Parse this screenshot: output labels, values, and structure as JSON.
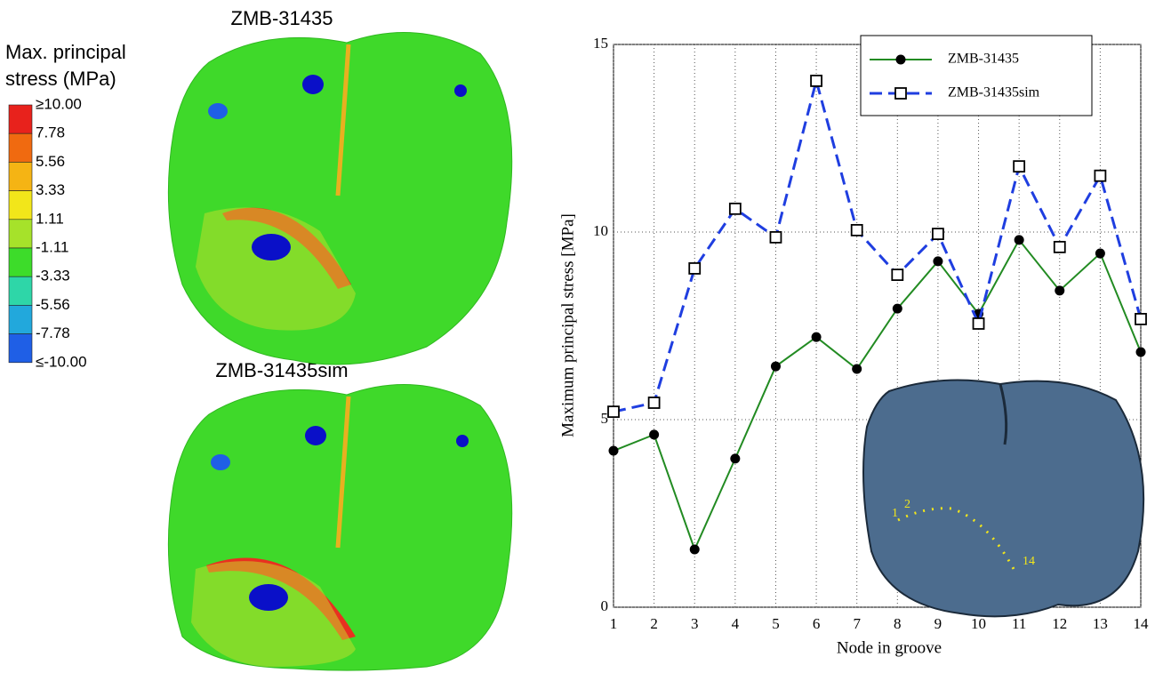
{
  "chart_data": {
    "type": "line",
    "x_label": "Node in groove",
    "y_label": "Maximum principal stress [MPa]",
    "x": [
      1,
      2,
      3,
      4,
      5,
      6,
      7,
      8,
      9,
      10,
      11,
      12,
      13,
      14
    ],
    "xlim": [
      1,
      14
    ],
    "xticks": [
      1,
      2,
      3,
      4,
      5,
      6,
      7,
      8,
      9,
      10,
      11,
      12,
      13,
      14
    ],
    "ylim": [
      0,
      15
    ],
    "yticks": [
      0,
      5,
      10,
      15
    ],
    "grid": true,
    "legend": "upper right",
    "series": [
      {
        "name": "ZMB-31435",
        "color": "#228b22",
        "marker": "circle",
        "dashed": false,
        "values": [
          4.17,
          4.6,
          1.54,
          3.96,
          6.42,
          7.2,
          6.35,
          7.96,
          9.22,
          7.82,
          9.79,
          8.44,
          9.43,
          6.8
        ]
      },
      {
        "name": "ZMB-31435sim",
        "color": "#1f3ee0",
        "marker": "square",
        "dashed": true,
        "values": [
          5.21,
          5.45,
          9.03,
          10.62,
          9.86,
          14.03,
          10.05,
          8.86,
          9.95,
          7.56,
          11.75,
          9.6,
          11.5,
          7.68
        ]
      }
    ],
    "inset_labels": [
      "1",
      "2",
      "14"
    ]
  },
  "figure": {
    "top_title": "ZMB-31435",
    "bottom_title": "ZMB-31435sim"
  },
  "colorbar": {
    "title_lines": [
      "Max. principal",
      "stress (MPa)"
    ],
    "labels": [
      "≥10.00",
      "7.78",
      "5.56",
      "3.33",
      "1.11",
      "-1.11",
      "-3.33",
      "-5.56",
      "-7.78",
      "≤-10.00"
    ],
    "colors": [
      "#e8221c",
      "#f06a10",
      "#f5b414",
      "#f2e61a",
      "#a6e22a",
      "#3ddc2a",
      "#2ed6a8",
      "#22a8dc",
      "#1f5fe6",
      "#0a10c8"
    ]
  }
}
